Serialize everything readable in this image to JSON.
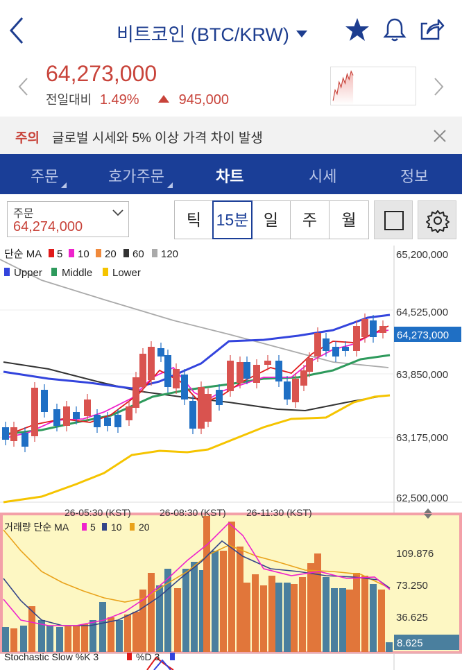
{
  "header": {
    "title": "비트코인 (BTC/KRW)",
    "icons": [
      "back-icon",
      "dropdown-caret-icon",
      "star-icon",
      "bell-icon",
      "share-icon"
    ]
  },
  "quote": {
    "price": "64,273,000",
    "change_label": "전일대비",
    "change_percent": "1.49%",
    "change_amount": "945,000",
    "color_up": "#c8433a"
  },
  "notice": {
    "tag": "주의",
    "message": "글로벌 시세와 5% 이상 가격 차이 발생"
  },
  "tabs": [
    {
      "label": "주문",
      "active": false
    },
    {
      "label": "호가주문",
      "active": false
    },
    {
      "label": "차트",
      "active": true
    },
    {
      "label": "시세",
      "active": false
    },
    {
      "label": "정보",
      "active": false
    }
  ],
  "toolbar": {
    "order_label": "주문",
    "order_value": "64,274,000",
    "intervals": [
      "틱",
      "15분",
      "일",
      "주",
      "월"
    ],
    "active_interval": "15분"
  },
  "chart": {
    "legend_ma": {
      "label": "단순 MA",
      "items": [
        "5",
        "10",
        "20",
        "60",
        "120"
      ]
    },
    "legend_bb": [
      "Upper",
      "Middle",
      "Lower"
    ],
    "price_axis": [
      "65,200,000",
      "64,525,000",
      "63,850,000",
      "63,175,000",
      "62,500,000"
    ],
    "current_price_tag": "64,273,000",
    "time_labels": [
      "26-05:30 (KST)",
      "26-08:30 (KST)",
      "26-11:30 (KST)"
    ],
    "volume_legend": {
      "label": "거래량 단순 MA",
      "items": [
        "5",
        "10",
        "20"
      ]
    },
    "volume_axis": [
      "109.876",
      "73.250",
      "36.625"
    ],
    "volume_tag": "8.625",
    "stochastic_legend": "Stochastic Slow %K 3",
    "stochastic_d": "%D 3",
    "colors": {
      "up": "#d9534f",
      "down": "#1f6fc4",
      "ma5": "#e11a1a",
      "ma10": "#ee22cc",
      "ma20": "#f08a3c",
      "ma60": "#333333",
      "ma120": "#aaaaaa",
      "upper": "#3344dd",
      "middle": "#2e9a5c",
      "lower": "#f5c400",
      "vol_up": "#e1763a",
      "vol_down": "#4a7f9e"
    }
  }
}
